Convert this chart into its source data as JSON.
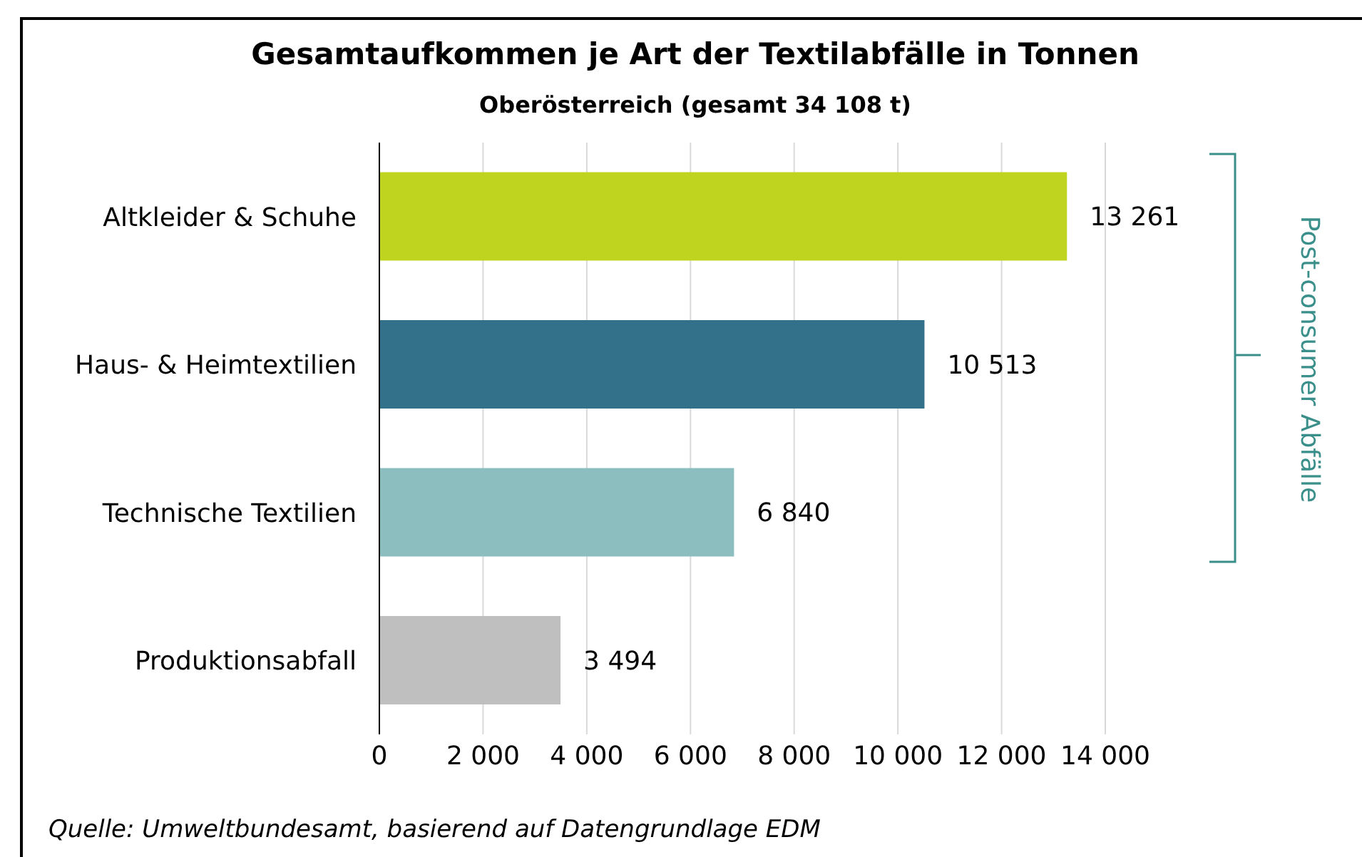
{
  "chart_data": {
    "type": "bar",
    "orientation": "horizontal",
    "title": "Gesamtaufkommen je Art der Textilabfälle in Tonnen",
    "subtitle": "Oberösterreich (gesamt 34 108 t)",
    "categories": [
      "Altkleider & Schuhe",
      "Haus- & Heimtextilien",
      "Technische Textilien",
      "Produktionsabfall"
    ],
    "values": [
      13261,
      10513,
      6840,
      3494
    ],
    "colors": [
      "#bfd41f",
      "#33718a",
      "#8cbdbf",
      "#bfbfbf"
    ],
    "value_labels": [
      "13 261",
      "10 513",
      "6 840",
      "3 494"
    ],
    "xlim": [
      0,
      14000
    ],
    "xticks": [
      0,
      {
        "value": 2000,
        "label": "2 000"
      },
      {
        "value": 4000,
        "label": "4 000"
      },
      {
        "value": 6000,
        "label": "6 000"
      },
      {
        "value": 8000,
        "label": "8 000"
      },
      {
        "value": 10000,
        "label": "10 000"
      },
      {
        "value": 12000,
        "label": "12 000"
      },
      {
        "value": 14000,
        "label": "14 000"
      }
    ],
    "grid": "x",
    "legend": false,
    "annotations": [
      "Quelle: Umweltbundesamt, basierend auf Datengrundlage EDM",
      "Post-consumer Abfälle"
    ]
  }
}
